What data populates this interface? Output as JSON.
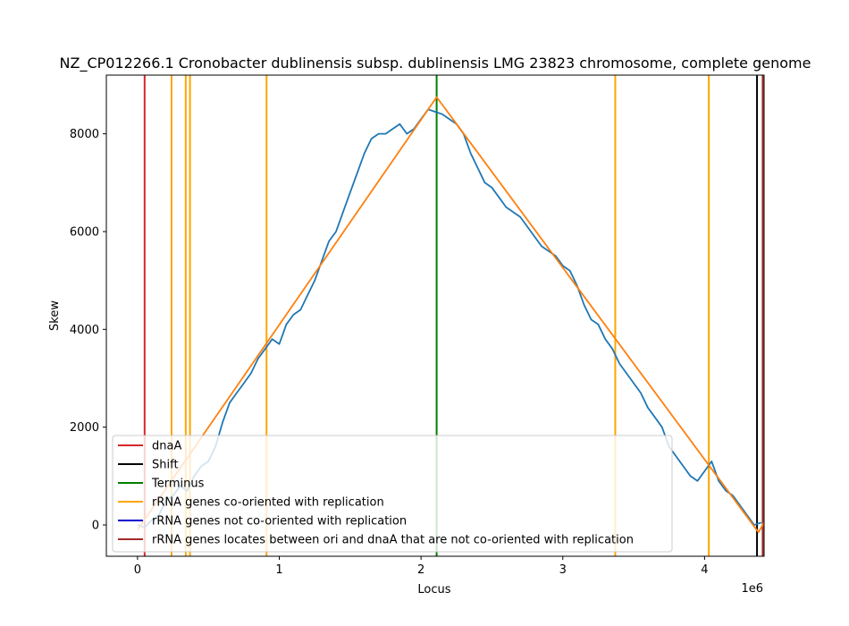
{
  "chart_data": {
    "type": "line",
    "title": "NZ_CP012266.1 Cronobacter dublinensis subsp. dublinensis LMG 23823 chromosome, complete genome",
    "xlabel": "Locus",
    "ylabel": "Skew",
    "x_offset_label": "1e6",
    "xlim": [
      -0.22,
      4.42
    ],
    "ylim": [
      -640,
      9200
    ],
    "x_ticks": [
      0,
      1,
      2,
      3,
      4
    ],
    "x_tick_labels": [
      "0",
      "1",
      "2",
      "3",
      "4"
    ],
    "y_ticks": [
      0,
      2000,
      4000,
      6000,
      8000
    ],
    "y_tick_labels": [
      "0",
      "2000",
      "4000",
      "6000",
      "8000"
    ],
    "grid": false,
    "legend_position": "lower-left",
    "series": [
      {
        "name": "",
        "color": "#1f77b4",
        "x": [
          0.0,
          0.05,
          0.1,
          0.15,
          0.2,
          0.25,
          0.3,
          0.35,
          0.4,
          0.45,
          0.5,
          0.55,
          0.6,
          0.65,
          0.7,
          0.75,
          0.8,
          0.85,
          0.9,
          0.95,
          1.0,
          1.05,
          1.1,
          1.15,
          1.2,
          1.25,
          1.3,
          1.35,
          1.4,
          1.45,
          1.5,
          1.55,
          1.6,
          1.65,
          1.7,
          1.75,
          1.8,
          1.85,
          1.9,
          1.95,
          2.0,
          2.05,
          2.1,
          2.15,
          2.2,
          2.25,
          2.3,
          2.35,
          2.4,
          2.45,
          2.5,
          2.55,
          2.6,
          2.65,
          2.7,
          2.75,
          2.8,
          2.85,
          2.9,
          2.95,
          3.0,
          3.05,
          3.1,
          3.15,
          3.2,
          3.25,
          3.3,
          3.35,
          3.4,
          3.45,
          3.5,
          3.55,
          3.6,
          3.65,
          3.7,
          3.75,
          3.8,
          3.85,
          3.9,
          3.95,
          4.0,
          4.05,
          4.1,
          4.15,
          4.2,
          4.25,
          4.3,
          4.35,
          4.4
        ],
        "y": [
          0,
          -50,
          100,
          200,
          500,
          600,
          800,
          700,
          1000,
          1200,
          1300,
          1600,
          2100,
          2500,
          2700,
          2900,
          3100,
          3400,
          3600,
          3800,
          3700,
          4100,
          4300,
          4400,
          4700,
          5000,
          5400,
          5800,
          6000,
          6400,
          6800,
          7200,
          7600,
          7900,
          8000,
          8000,
          8100,
          8200,
          8000,
          8100,
          8300,
          8500,
          8450,
          8400,
          8300,
          8200,
          8000,
          7600,
          7300,
          7000,
          6900,
          6700,
          6500,
          6400,
          6300,
          6100,
          5900,
          5700,
          5600,
          5500,
          5300,
          5200,
          4900,
          4500,
          4200,
          4100,
          3800,
          3600,
          3300,
          3100,
          2900,
          2700,
          2400,
          2200,
          2000,
          1600,
          1400,
          1200,
          1000,
          900,
          1100,
          1300,
          900,
          700,
          600,
          400,
          200,
          0,
          50
        ]
      },
      {
        "name": "",
        "color": "#ff7f0e",
        "x": [
          0.0,
          2.11,
          4.38,
          4.42
        ],
        "y": [
          -100,
          8750,
          -150,
          50
        ]
      }
    ],
    "vlines": [
      {
        "x": 0.05,
        "color": "#d62728",
        "legend": "dnaA"
      },
      {
        "x": 0.24,
        "color": "#ffa500",
        "legend": "rRNA genes co-oriented with replication"
      },
      {
        "x": 0.34,
        "color": "#ffa500",
        "legend": "rRNA genes co-oriented with replication"
      },
      {
        "x": 0.37,
        "color": "#ffa500",
        "legend": "rRNA genes co-oriented with replication"
      },
      {
        "x": 0.91,
        "color": "#ffa500",
        "legend": "rRNA genes co-oriented with replication"
      },
      {
        "x": 2.11,
        "color": "#008000",
        "legend": "Terminus"
      },
      {
        "x": 3.37,
        "color": "#ffa500",
        "legend": "rRNA genes co-oriented with replication"
      },
      {
        "x": 4.03,
        "color": "#ffa500",
        "legend": "rRNA genes co-oriented with replication"
      },
      {
        "x": 4.37,
        "color": "#000000",
        "legend": "Shift"
      },
      {
        "x": 4.41,
        "color": "#a52a2a",
        "legend": "rRNA genes locates between ori and dnaA that are not co-oriented with replication"
      }
    ],
    "legend": [
      {
        "label": "dnaA",
        "color": "#d62728"
      },
      {
        "label": "Shift",
        "color": "#000000"
      },
      {
        "label": "Terminus",
        "color": "#008000"
      },
      {
        "label": "rRNA genes co-oriented with replication",
        "color": "#ffa500"
      },
      {
        "label": "rRNA genes not co-oriented with replication",
        "color": "#0000cd"
      },
      {
        "label": "rRNA genes locates between ori and dnaA that are not co-oriented with replication",
        "color": "#a52a2a"
      }
    ]
  }
}
